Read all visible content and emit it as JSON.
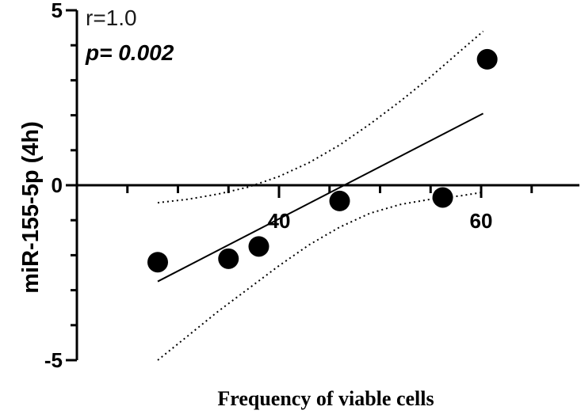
{
  "chart_data": {
    "type": "scatter",
    "xlabel": "Frequency of viable cells",
    "ylabel": "miR-155-5p (4h)",
    "xlim": [
      20,
      70
    ],
    "ylim": [
      -5,
      5
    ],
    "x_ticks": [
      40,
      60
    ],
    "y_ticks": [
      -5,
      0,
      5
    ],
    "grid": false,
    "annotations": {
      "r": "r=1.0",
      "p": "p= 0.002"
    },
    "points": [
      {
        "x": 28.0,
        "y": -2.2
      },
      {
        "x": 35.0,
        "y": -2.1
      },
      {
        "x": 38.0,
        "y": -1.75
      },
      {
        "x": 46.0,
        "y": -0.45
      },
      {
        "x": 56.2,
        "y": -0.35
      },
      {
        "x": 60.6,
        "y": 3.6
      }
    ],
    "fit_line": {
      "x": [
        28.0,
        60.2
      ],
      "y": [
        -2.75,
        2.05
      ]
    },
    "ci_upper": {
      "x": [
        28.0,
        31,
        34,
        37,
        40,
        43,
        46,
        49,
        52,
        55,
        58,
        60.2
      ],
      "y": [
        -0.5,
        -0.4,
        -0.25,
        -0.05,
        0.25,
        0.65,
        1.15,
        1.75,
        2.4,
        3.1,
        3.85,
        4.4
      ]
    },
    "ci_lower": {
      "x": [
        28.0,
        31,
        34,
        37,
        40,
        43,
        46,
        49,
        52,
        55,
        58,
        60.2
      ],
      "y": [
        -5.0,
        -4.3,
        -3.6,
        -2.95,
        -2.3,
        -1.7,
        -1.2,
        -0.8,
        -0.55,
        -0.4,
        -0.3,
        -0.2
      ]
    }
  }
}
